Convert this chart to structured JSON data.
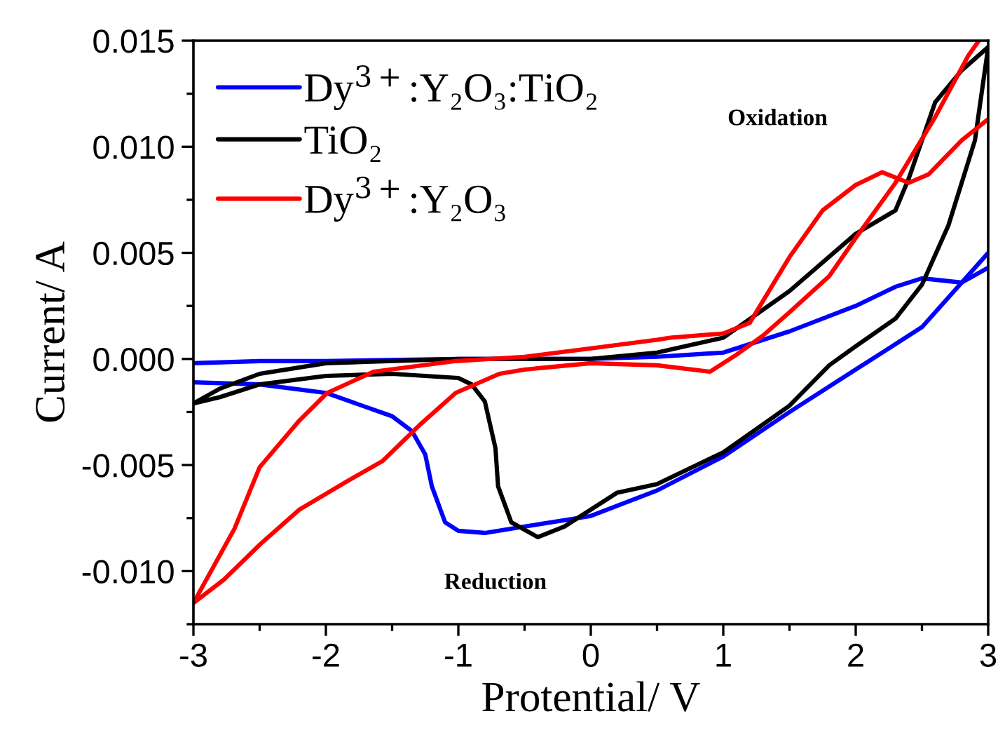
{
  "chart_data": {
    "type": "line",
    "xlabel": "Protential/ V",
    "ylabel": "Current/ A",
    "xlim": [
      -3,
      3
    ],
    "ylim": [
      -0.0125,
      0.015
    ],
    "xticks": [
      -3,
      -2,
      -1,
      0,
      1,
      2,
      3
    ],
    "yticks": [
      {
        "value": -0.01,
        "label": "-0.010"
      },
      {
        "value": -0.005,
        "label": "-0.005"
      },
      {
        "value": 0,
        "label": "0.000"
      },
      {
        "value": 0.005,
        "label": "0.005"
      },
      {
        "value": 0.01,
        "label": "0.010"
      },
      {
        "value": 0.015,
        "label": "0.015"
      }
    ],
    "grid": false,
    "legend": "top left",
    "line_style": "solid",
    "marker": "none",
    "annotations": [
      "Oxidation",
      "Reduction"
    ],
    "series": [
      {
        "name": "Dy$^{3+}$:Y₂O₃:TiO₂",
        "color": "#0000ff",
        "x": [
          -3,
          -2.5,
          -2,
          -1,
          0,
          0.5,
          1,
          1.5,
          2,
          2.3,
          2.5,
          2.8,
          3
        ],
        "values": [
          -0.0002,
          -0.0001,
          -0.0001,
          0,
          0,
          0.0001,
          0.0003,
          0.0013,
          0.0025,
          0.0034,
          0.0038,
          0.0036,
          0.0043
        ]
      },
      {
        "color": "#0000ff",
        "x": [
          3,
          2.5,
          2,
          1.5,
          1,
          0.5,
          0,
          -0.5,
          -0.8,
          -1,
          -1.1,
          -1.2,
          -1.25,
          -1.35,
          -1.5,
          -2,
          -2.5,
          -3
        ],
        "values": [
          0.005,
          0.0015,
          -0.0005,
          -0.0025,
          -0.0046,
          -0.0062,
          -0.0074,
          -0.0079,
          -0.0082,
          -0.0081,
          -0.0077,
          -0.006,
          -0.0045,
          -0.0034,
          -0.0027,
          -0.0016,
          -0.0012,
          -0.0011
        ]
      },
      {
        "name": "TiO₂",
        "color": "#000000",
        "x": [
          -3,
          -2.8,
          -2.5,
          -2,
          -1,
          0,
          0.5,
          1,
          1.5,
          2,
          2.3,
          2.4,
          2.6,
          2.8,
          3
        ],
        "values": [
          -0.0021,
          -0.0014,
          -0.0007,
          -0.0002,
          0,
          0,
          0.0003,
          0.001,
          0.0032,
          0.0059,
          0.007,
          0.0085,
          0.0121,
          0.0136,
          0.0147
        ]
      },
      {
        "color": "#000000",
        "x": [
          3,
          2.9,
          2.7,
          2.5,
          2.3,
          2,
          1.8,
          1.5,
          1,
          0.5,
          0.2,
          0,
          -0.2,
          -0.4,
          -0.6,
          -0.7,
          -0.72,
          -0.8,
          -0.9,
          -1,
          -1.5,
          -2,
          -2.5,
          -2.8,
          -3
        ],
        "values": [
          0.0147,
          0.0103,
          0.0063,
          0.0035,
          0.0019,
          0.0006,
          -0.0003,
          -0.0022,
          -0.0044,
          -0.0059,
          -0.0063,
          -0.0071,
          -0.0079,
          -0.0084,
          -0.0077,
          -0.006,
          -0.0042,
          -0.002,
          -0.0012,
          -0.0009,
          -0.0007,
          -0.0008,
          -0.0012,
          -0.0018,
          -0.0021
        ]
      },
      {
        "name": "Dy$^{3+}$:Y₂O₃",
        "color": "#ff0000",
        "x": [
          -3,
          -2.77,
          -2.49,
          -2.2,
          -1.85,
          -1.57,
          -1.29,
          -1.02,
          -0.69,
          -0.5,
          0,
          0.5,
          0.9,
          1.1,
          1.3,
          1.5,
          1.8,
          2,
          2.3,
          2.6,
          2.85,
          2.93
        ],
        "values": [
          -0.0115,
          -0.0104,
          -0.0087,
          -0.0071,
          -0.0058,
          -0.0048,
          -0.0031,
          -0.0016,
          -0.0007,
          -0.0005,
          -0.0002,
          -0.0003,
          -0.0006,
          0.0002,
          0.0011,
          0.0022,
          0.0039,
          0.0057,
          0.0083,
          0.0114,
          0.0143,
          0.015
        ]
      },
      {
        "color": "#ff0000",
        "x": [
          3,
          2.8,
          2.55,
          2.4,
          2.2,
          2,
          1.75,
          1.5,
          1.2,
          1,
          0.6,
          0.5,
          0,
          -0.5,
          -1.02,
          -1.64,
          -1.99,
          -2.2,
          -2.5,
          -2.69,
          -3
        ],
        "values": [
          0.0113,
          0.0103,
          0.0087,
          0.0083,
          0.0088,
          0.0082,
          0.007,
          0.0048,
          0.0017,
          0.0012,
          0.001,
          0.0009,
          0.0005,
          0.0001,
          -0.0001,
          -0.0006,
          -0.0016,
          -0.0029,
          -0.0051,
          -0.008,
          -0.0115
        ]
      }
    ]
  }
}
